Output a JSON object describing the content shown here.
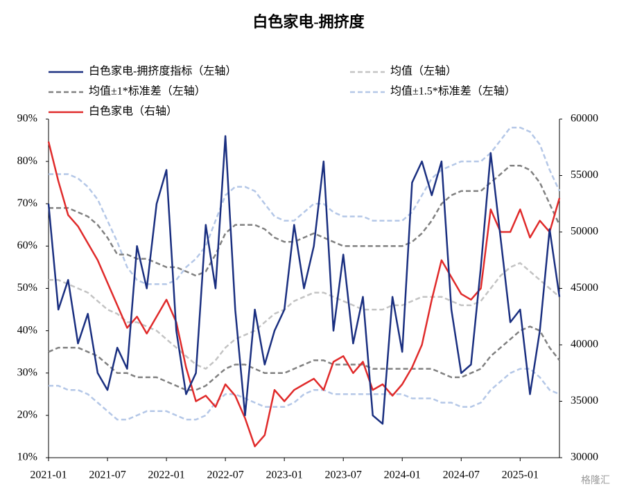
{
  "chart_data": {
    "type": "line",
    "title": "白色家电-拥挤度",
    "watermark": "格隆汇",
    "categories": [
      "2021-01",
      null,
      null,
      null,
      null,
      null,
      "2021-07",
      null,
      null,
      null,
      null,
      null,
      "2022-01",
      null,
      null,
      null,
      null,
      null,
      "2022-07",
      null,
      null,
      null,
      null,
      null,
      "2023-01",
      null,
      null,
      null,
      null,
      null,
      "2023-07",
      null,
      null,
      null,
      null,
      null,
      "2024-01",
      null,
      null,
      null,
      null,
      null,
      "2024-07",
      null,
      null,
      null,
      null,
      null,
      "2025-01",
      null,
      null,
      null,
      null
    ],
    "ylim": [
      10,
      90
    ],
    "yticks": [
      {
        "value": 10,
        "label": "10%"
      },
      {
        "value": 20,
        "label": "20%"
      },
      {
        "value": 30,
        "label": "30%"
      },
      {
        "value": 40,
        "label": "40%"
      },
      {
        "value": 50,
        "label": "50%"
      },
      {
        "value": 60,
        "label": "60%"
      },
      {
        "value": 70,
        "label": "70%"
      },
      {
        "value": 80,
        "label": "80%"
      },
      {
        "value": 90,
        "label": "90%"
      }
    ],
    "y2lim": [
      30000,
      60000
    ],
    "y2ticks": [
      30000,
      35000,
      40000,
      45000,
      50000,
      55000,
      60000
    ],
    "series": [
      {
        "name": "白色家电-拥挤度指标（左轴）",
        "color": "#1a2f80",
        "dashed": false,
        "values": [
          70,
          45,
          52,
          37,
          44,
          30,
          26,
          36,
          31,
          60,
          50,
          70,
          78,
          40,
          25,
          30,
          65,
          50,
          86,
          45,
          20,
          45,
          32,
          40,
          45,
          65,
          50,
          60,
          80,
          40,
          58,
          37,
          48,
          20,
          18,
          48,
          35,
          75,
          80,
          72,
          80,
          45,
          30,
          32,
          55,
          82,
          62,
          42,
          45,
          25,
          40,
          64,
          48
        ]
      },
      {
        "name": "均值（左轴）",
        "color": "#c3c3c3",
        "dashed": true,
        "values": [
          52,
          52,
          51,
          50,
          49,
          47,
          45,
          44,
          42,
          42,
          41,
          40,
          38,
          36,
          34,
          32,
          31,
          33,
          36,
          38,
          39,
          40,
          42,
          44,
          45,
          47,
          48,
          49,
          49,
          48,
          47,
          46,
          45,
          45,
          45,
          46,
          46,
          47,
          48,
          48,
          48,
          47,
          46,
          46,
          47,
          50,
          53,
          55,
          56,
          54,
          52,
          50,
          48
        ]
      },
      {
        "name": "均值±1*标准差（左轴）",
        "color": "#808080",
        "dashed": true,
        "values": [
          69,
          69,
          69,
          68,
          67,
          65,
          62,
          58,
          58,
          57,
          57,
          56,
          55,
          55,
          54,
          53,
          54,
          58,
          63,
          65,
          65,
          65,
          64,
          62,
          61,
          61,
          62,
          63,
          62,
          61,
          60,
          60,
          60,
          60,
          60,
          60,
          60,
          61,
          63,
          66,
          70,
          72,
          73,
          73,
          73,
          75,
          77,
          79,
          79,
          78,
          75,
          70,
          65
        ],
        "lower": [
          35,
          36,
          36,
          36,
          35,
          34,
          32,
          30,
          30,
          29,
          29,
          29,
          28,
          27,
          26,
          26,
          27,
          29,
          31,
          32,
          32,
          31,
          30,
          30,
          30,
          31,
          32,
          33,
          33,
          32,
          32,
          32,
          32,
          31,
          31,
          31,
          31,
          31,
          31,
          31,
          30,
          29,
          29,
          30,
          31,
          34,
          36,
          38,
          40,
          41,
          40,
          36,
          33
        ]
      },
      {
        "name": "均值±1.5*标准差（左轴）",
        "color": "#b4c7e7",
        "dashed": true,
        "values": [
          77,
          77,
          77,
          76,
          74,
          71,
          66,
          61,
          55,
          52,
          51,
          51,
          51,
          52,
          55,
          57,
          60,
          66,
          72,
          74,
          74,
          73,
          70,
          67,
          66,
          66,
          68,
          70,
          70,
          68,
          67,
          67,
          67,
          66,
          66,
          66,
          66,
          68,
          72,
          76,
          78,
          79,
          80,
          80,
          80,
          82,
          85,
          88,
          88,
          87,
          84,
          78,
          73
        ],
        "lower": [
          27,
          27,
          26,
          26,
          25,
          23,
          21,
          19,
          19,
          20,
          21,
          21,
          21,
          20,
          19,
          19,
          20,
          23,
          25,
          25,
          24,
          23,
          22,
          22,
          22,
          23,
          25,
          26,
          26,
          25,
          25,
          25,
          25,
          25,
          25,
          25,
          25,
          24,
          24,
          24,
          23,
          23,
          22,
          22,
          23,
          26,
          28,
          30,
          31,
          31,
          29,
          26,
          25
        ]
      },
      {
        "name": "白色家电（右轴）",
        "color": "#e02a2a",
        "dashed": false,
        "axis": "y2",
        "values": [
          58000,
          54500,
          51500,
          50500,
          49000,
          47500,
          45500,
          43500,
          41500,
          42500,
          41000,
          42500,
          44000,
          42000,
          38000,
          35000,
          35500,
          34500,
          36500,
          35500,
          33500,
          31000,
          32000,
          36000,
          35000,
          36000,
          36500,
          37000,
          36000,
          38500,
          39000,
          37500,
          38500,
          36000,
          36500,
          35500,
          36500,
          38000,
          40000,
          44000,
          47500,
          46000,
          44500,
          44000,
          45000,
          52000,
          50000,
          50000,
          52000,
          49500,
          51000,
          50000,
          53000
        ]
      }
    ]
  }
}
